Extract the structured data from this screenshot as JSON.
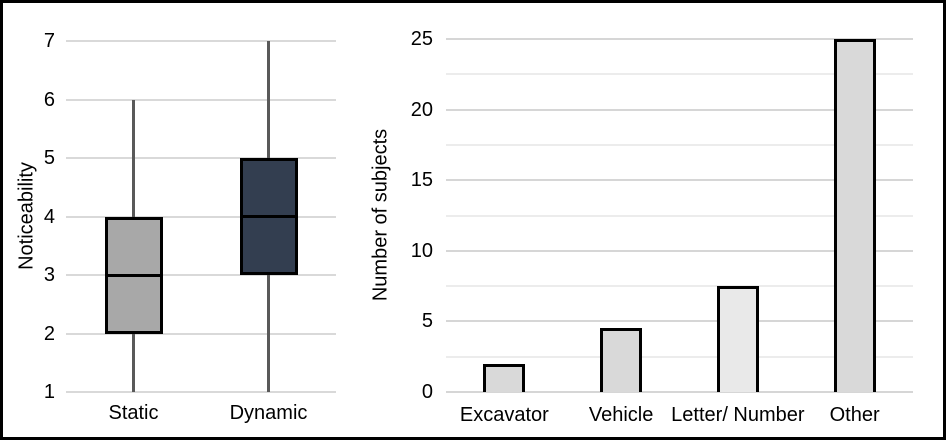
{
  "frame": {
    "border_color": "#000000",
    "background_color": "#ffffff"
  },
  "chart_data": [
    {
      "type": "boxplot",
      "title": "",
      "xlabel": "",
      "ylabel": "Noticeability",
      "categories": [
        "Static",
        "Dynamic"
      ],
      "ylim": [
        1,
        7
      ],
      "yticks": [
        1,
        2,
        3,
        4,
        5,
        6,
        7
      ],
      "grid": true,
      "legend": "none",
      "gridline_color": "#d9d9d9",
      "whisker_color": "#595959",
      "box_border_color": "#000000",
      "median_color": "#000000",
      "series": [
        {
          "name": "Static",
          "whisker_low": 1,
          "q1": 2,
          "median": 3,
          "q3": 4,
          "whisker_high": 6,
          "fill": "#a8a8a8"
        },
        {
          "name": "Dynamic",
          "whisker_low": 1,
          "q1": 3,
          "median": 4,
          "q3": 5,
          "whisker_high": 7,
          "fill": "#333e50"
        }
      ]
    },
    {
      "type": "bar",
      "title": "",
      "xlabel": "",
      "ylabel": "Number of subjects",
      "categories": [
        "Excavator",
        "Vehicle",
        "Letter/ Number",
        "Other"
      ],
      "values": [
        2,
        4.5,
        7.5,
        25
      ],
      "ylim": [
        0,
        25
      ],
      "yticks": [
        0,
        5,
        10,
        15,
        20,
        25
      ],
      "minor_tick_step": 2.5,
      "grid": true,
      "legend": "none",
      "major_gridline_color": "#d6d6d6",
      "minor_gridline_color": "#ececec",
      "bar_border_color": "#000000",
      "bar_fills": [
        "#d9d9d9",
        "#d9d9d9",
        "#e9e9e9",
        "#d9d9d9"
      ]
    }
  ]
}
